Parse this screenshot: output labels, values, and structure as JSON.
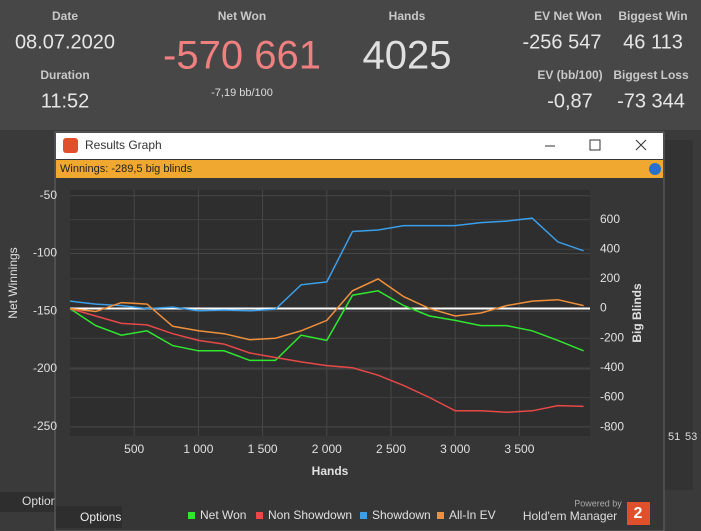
{
  "header": {
    "date_label": "Date",
    "date": "08.07.2020",
    "duration_label": "Duration",
    "duration": "11:52",
    "net_won_label": "Net Won",
    "net_won": "-570 661",
    "bb_per_100": "-7,19 bb/100",
    "hands_label": "Hands",
    "hands": "4025",
    "ev_net_won_label": "EV Net Won",
    "ev_net_won": "-256 547",
    "biggest_win_label": "Biggest Win",
    "biggest_win": "46 113",
    "ev_bb_label": "EV (bb/100)",
    "ev_bb": "-0,87",
    "biggest_loss_label": "Biggest Loss",
    "biggest_loss": "-73 344"
  },
  "window": {
    "title": "Results Graph",
    "winnings": "Winnings: -289,5 big blinds"
  },
  "background": {
    "options": "Options",
    "tick_a": "51",
    "tick_b": "53"
  },
  "footer": {
    "options": "Options",
    "powered_by": "Powered by",
    "brand": "Hold'em Manager",
    "logo": "2"
  },
  "chart_data": {
    "type": "line",
    "xlabel": "Hands",
    "ylabel": "Net Winnings",
    "y2label": "Big Blinds",
    "x": [
      0,
      200,
      400,
      600,
      800,
      1000,
      1200,
      1400,
      1600,
      1800,
      2000,
      2200,
      2400,
      2600,
      2800,
      3000,
      3200,
      3400,
      3600,
      3800,
      4000
    ],
    "xlim": [
      0,
      4050
    ],
    "xticks": [
      500,
      {
        "value": 1000,
        "label": "1 000"
      },
      {
        "value": 1500,
        "label": "1 500"
      },
      {
        "value": 2000,
        "label": "2 000"
      },
      {
        "value": 2500,
        "label": "2 500"
      },
      {
        "value": 3000,
        "label": "3 000"
      },
      {
        "value": 3500,
        "label": "3 500"
      }
    ],
    "ylim": [
      -258,
      -45
    ],
    "yticks": [
      -50,
      -100,
      -150,
      -200,
      -250
    ],
    "y2lim": [
      -860,
      800
    ],
    "y2ticks": [
      600,
      400,
      200,
      0,
      -200,
      -400,
      -600,
      -800
    ],
    "grid": true,
    "zero_line": true,
    "series": [
      {
        "name": "Net Won",
        "color": "#2ee82e",
        "axis": "y2",
        "values": [
          0,
          -115,
          -180,
          -150,
          -250,
          -285,
          -285,
          -350,
          -350,
          -180,
          -215,
          90,
          120,
          20,
          -50,
          -80,
          -115,
          -115,
          -150,
          -215,
          -285
        ]
      },
      {
        "name": "Non Showdown",
        "color": "#e84848",
        "axis": "y2",
        "values": [
          0,
          -50,
          -100,
          -110,
          -170,
          -215,
          -240,
          -300,
          -330,
          -360,
          -385,
          -400,
          -450,
          -520,
          -600,
          -690,
          -690,
          -700,
          -690,
          -655,
          -660
        ]
      },
      {
        "name": "Showdown",
        "color": "#3a9ee8",
        "axis": "y2",
        "values": [
          50,
          30,
          20,
          0,
          10,
          -15,
          -10,
          -15,
          -5,
          160,
          180,
          520,
          530,
          560,
          560,
          560,
          580,
          590,
          610,
          450,
          390
        ]
      },
      {
        "name": "All-In EV",
        "color": "#f0903a",
        "axis": "y2",
        "values": [
          0,
          -20,
          40,
          30,
          -120,
          -150,
          -170,
          -210,
          -200,
          -150,
          -80,
          120,
          200,
          80,
          0,
          -50,
          -30,
          20,
          50,
          60,
          20
        ]
      }
    ]
  }
}
